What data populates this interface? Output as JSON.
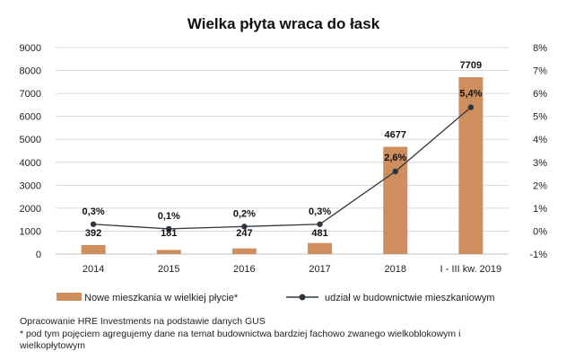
{
  "colors": {
    "bar": "#CF8E5E",
    "line": "#2E3640",
    "grid": "#D9D9D9",
    "axis": "#BFBFBF"
  },
  "legend": {
    "bars_label": "Nowe mieszkania w wielkiej płycie*",
    "line_label": "udział w budownictwie mieszkaniowym"
  },
  "notes": {
    "source": "Opracowanie HRE Investments na podstawie danych GUS",
    "footnote": "* pod tym pojęciem agregujemy dane na temat budownictwa bardziej fachowo zwanego wielkoblokowym i wielkopłytowym"
  },
  "chart_data": {
    "type": "bar",
    "title": "Wielka płyta wraca do łask",
    "categories": [
      "2014",
      "2015",
      "2016",
      "2017",
      "2018",
      "I - III kw. 2019"
    ],
    "series": [
      {
        "name": "Nowe mieszkania w wielkiej płycie*",
        "type": "bar",
        "axis": "left",
        "values": [
          392,
          181,
          247,
          481,
          4677,
          7709
        ],
        "labels": [
          "392",
          "181",
          "247",
          "481",
          "4677",
          "7709"
        ]
      },
      {
        "name": "udział w budownictwie mieszkaniowym",
        "type": "line",
        "axis": "right",
        "values": [
          0.3,
          0.1,
          0.2,
          0.3,
          2.6,
          5.4
        ],
        "labels": [
          "0,3%",
          "0,1%",
          "0,2%",
          "0,3%",
          "2,6%",
          "5,4%"
        ]
      }
    ],
    "y_left": {
      "min": 0,
      "max": 9000,
      "step": 1000,
      "ticks": [
        "0",
        "1000",
        "2000",
        "3000",
        "4000",
        "5000",
        "6000",
        "7000",
        "8000",
        "9000"
      ]
    },
    "y_right": {
      "min": -1,
      "max": 8,
      "step": 1,
      "ticks": [
        "-1%",
        "0%",
        "1%",
        "2%",
        "3%",
        "4%",
        "5%",
        "6%",
        "7%",
        "8%"
      ]
    },
    "grid": true,
    "legend_position": "bottom"
  }
}
